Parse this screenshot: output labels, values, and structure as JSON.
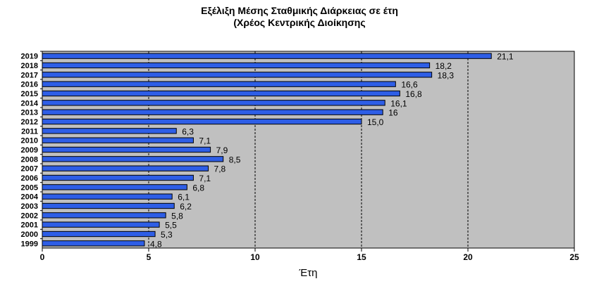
{
  "chart_data": {
    "type": "bar",
    "orientation": "horizontal",
    "title_line1": "Εξέλιξη Μέσης Σταθμικής Διάρκειας σε έτη",
    "title_line2": "(Χρέος Κεντρικής Διοίκησης",
    "xlabel": "Έτη",
    "ylabel": "",
    "xlim": [
      0,
      25
    ],
    "xticks": [
      0,
      5,
      10,
      15,
      20,
      25
    ],
    "grid": "vertical dashed",
    "categories": [
      "2019",
      "2018",
      "2017",
      "2016",
      "2015",
      "2014",
      "2013",
      "2012",
      "2011",
      "2010",
      "2009",
      "2008",
      "2007",
      "2006",
      "2005",
      "2004",
      "2003",
      "2002",
      "2001",
      "2000",
      "1999"
    ],
    "values": [
      21.1,
      18.2,
      18.3,
      16.6,
      16.8,
      16.1,
      16,
      15.0,
      6.3,
      7.1,
      7.9,
      8.5,
      7.8,
      7.1,
      6.8,
      6.1,
      6.2,
      5.8,
      5.5,
      5.3,
      4.8
    ],
    "value_labels": [
      "21,1",
      "18,2",
      "18,3",
      "16,6",
      "16,8",
      "16,1",
      "16",
      "15,0",
      "6,3",
      "7,1",
      "7,9",
      "8,5",
      "7,8",
      "7,1",
      "6,8",
      "6,1",
      "6,2",
      "5,8",
      "5,5",
      "5,3",
      "4,8"
    ],
    "colors": {
      "bar": "#2e5ee6",
      "bar_border": "#000000",
      "plot_background": "#c0c0c0",
      "gridline": "#000000"
    }
  }
}
